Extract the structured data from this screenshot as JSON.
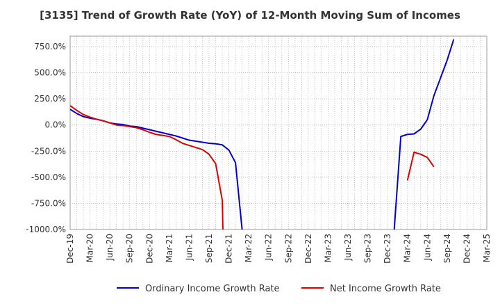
{
  "chart_data": {
    "type": "line",
    "title": "[3135]  Trend of Growth Rate (YoY) of 12-Month Moving Sum of Incomes",
    "xlabel": "",
    "ylabel": "",
    "ylim": [
      -1000,
      850
    ],
    "y_ticks": [
      750,
      500,
      250,
      0,
      -250,
      -500,
      -750,
      -1000
    ],
    "y_tick_labels": [
      "750.0%",
      "500.0%",
      "250.0%",
      "0.0%",
      "-250.0%",
      "-500.0%",
      "-750.0%",
      "-1000.0%"
    ],
    "x_tick_labels": [
      "Dec-19",
      "Mar-20",
      "Jun-20",
      "Sep-20",
      "Dec-20",
      "Mar-21",
      "Jun-21",
      "Sep-21",
      "Dec-21",
      "Mar-22",
      "Jun-22",
      "Sep-22",
      "Dec-22",
      "Mar-23",
      "Jun-23",
      "Sep-23",
      "Dec-23",
      "Mar-24",
      "Jun-24",
      "Sep-24",
      "Dec-24",
      "Mar-25"
    ],
    "grid": true,
    "legend_position": "bottom",
    "series": [
      {
        "name": "Ordinary Income Growth Rate",
        "color": "#0000cc",
        "points": [
          [
            0,
            150
          ],
          [
            1,
            110
          ],
          [
            2,
            80
          ],
          [
            3,
            65
          ],
          [
            4,
            55
          ],
          [
            5,
            40
          ],
          [
            6,
            20
          ],
          [
            7,
            10
          ],
          [
            8,
            5
          ],
          [
            9,
            -10
          ],
          [
            10,
            -15
          ],
          [
            11,
            -30
          ],
          [
            12,
            -45
          ],
          [
            13,
            -60
          ],
          [
            14,
            -75
          ],
          [
            15,
            -90
          ],
          [
            16,
            -105
          ],
          [
            17,
            -125
          ],
          [
            18,
            -145
          ],
          [
            19,
            -155
          ],
          [
            20,
            -165
          ],
          [
            21,
            -175
          ],
          [
            22,
            -180
          ],
          [
            23,
            -190
          ],
          [
            24,
            -240
          ],
          [
            25,
            -360
          ],
          [
            26,
            -1000
          ],
          null,
          [
            49,
            -1000
          ],
          [
            50,
            -110
          ],
          [
            51,
            -90
          ],
          [
            52,
            -85
          ],
          [
            53,
            -40
          ],
          [
            54,
            50
          ],
          [
            55,
            280
          ],
          [
            56,
            450
          ],
          [
            57,
            620
          ],
          [
            58,
            820
          ]
        ]
      },
      {
        "name": "Net Income Growth Rate",
        "color": "#dd0000",
        "points": [
          [
            0,
            185
          ],
          [
            1,
            140
          ],
          [
            2,
            100
          ],
          [
            3,
            75
          ],
          [
            4,
            55
          ],
          [
            5,
            40
          ],
          [
            6,
            20
          ],
          [
            7,
            0
          ],
          [
            8,
            -5
          ],
          [
            9,
            -15
          ],
          [
            10,
            -25
          ],
          [
            11,
            -45
          ],
          [
            12,
            -70
          ],
          [
            13,
            -90
          ],
          [
            14,
            -100
          ],
          [
            15,
            -110
          ],
          [
            16,
            -140
          ],
          [
            17,
            -175
          ],
          [
            18,
            -195
          ],
          [
            19,
            -215
          ],
          [
            20,
            -235
          ],
          [
            21,
            -280
          ],
          [
            22,
            -370
          ],
          [
            23,
            -720
          ],
          [
            23.1,
            -1000
          ],
          null,
          [
            51,
            -530
          ],
          [
            52,
            -260
          ],
          [
            53,
            -280
          ],
          [
            54,
            -310
          ],
          [
            55,
            -400
          ]
        ]
      }
    ]
  }
}
